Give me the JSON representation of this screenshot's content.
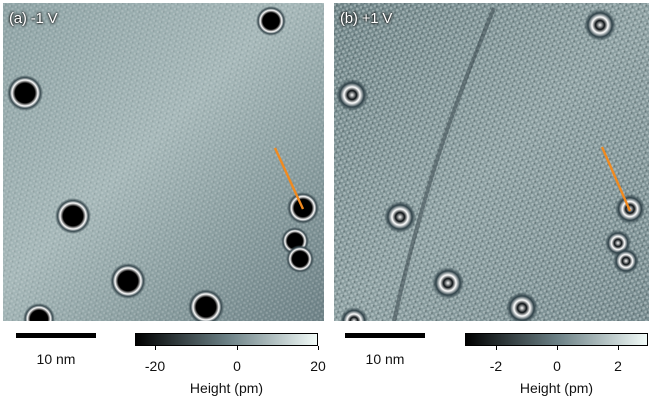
{
  "panels": [
    {
      "label": "(a) -1 V",
      "scalebar": "10 nm",
      "colorbar": {
        "ticks": [
          "-20",
          "0",
          "20"
        ],
        "title": "Height (pm)",
        "min": -25,
        "max": 20,
        "tick_values": [
          -20,
          0,
          20
        ]
      }
    },
    {
      "label": "(b) +1 V",
      "scalebar": "10 nm",
      "colorbar": {
        "ticks": [
          "-2",
          "0",
          "2"
        ],
        "title": "Height (pm)",
        "min": -3,
        "max": 3,
        "tick_values": [
          -2,
          0,
          2
        ]
      }
    }
  ],
  "colors": {
    "surface_base": "#7f9393",
    "colormap_dark": "#000000",
    "colormap_mid": "#6a7f84",
    "colormap_light": "#f2fbf8",
    "line_profile": "#f08a20"
  }
}
